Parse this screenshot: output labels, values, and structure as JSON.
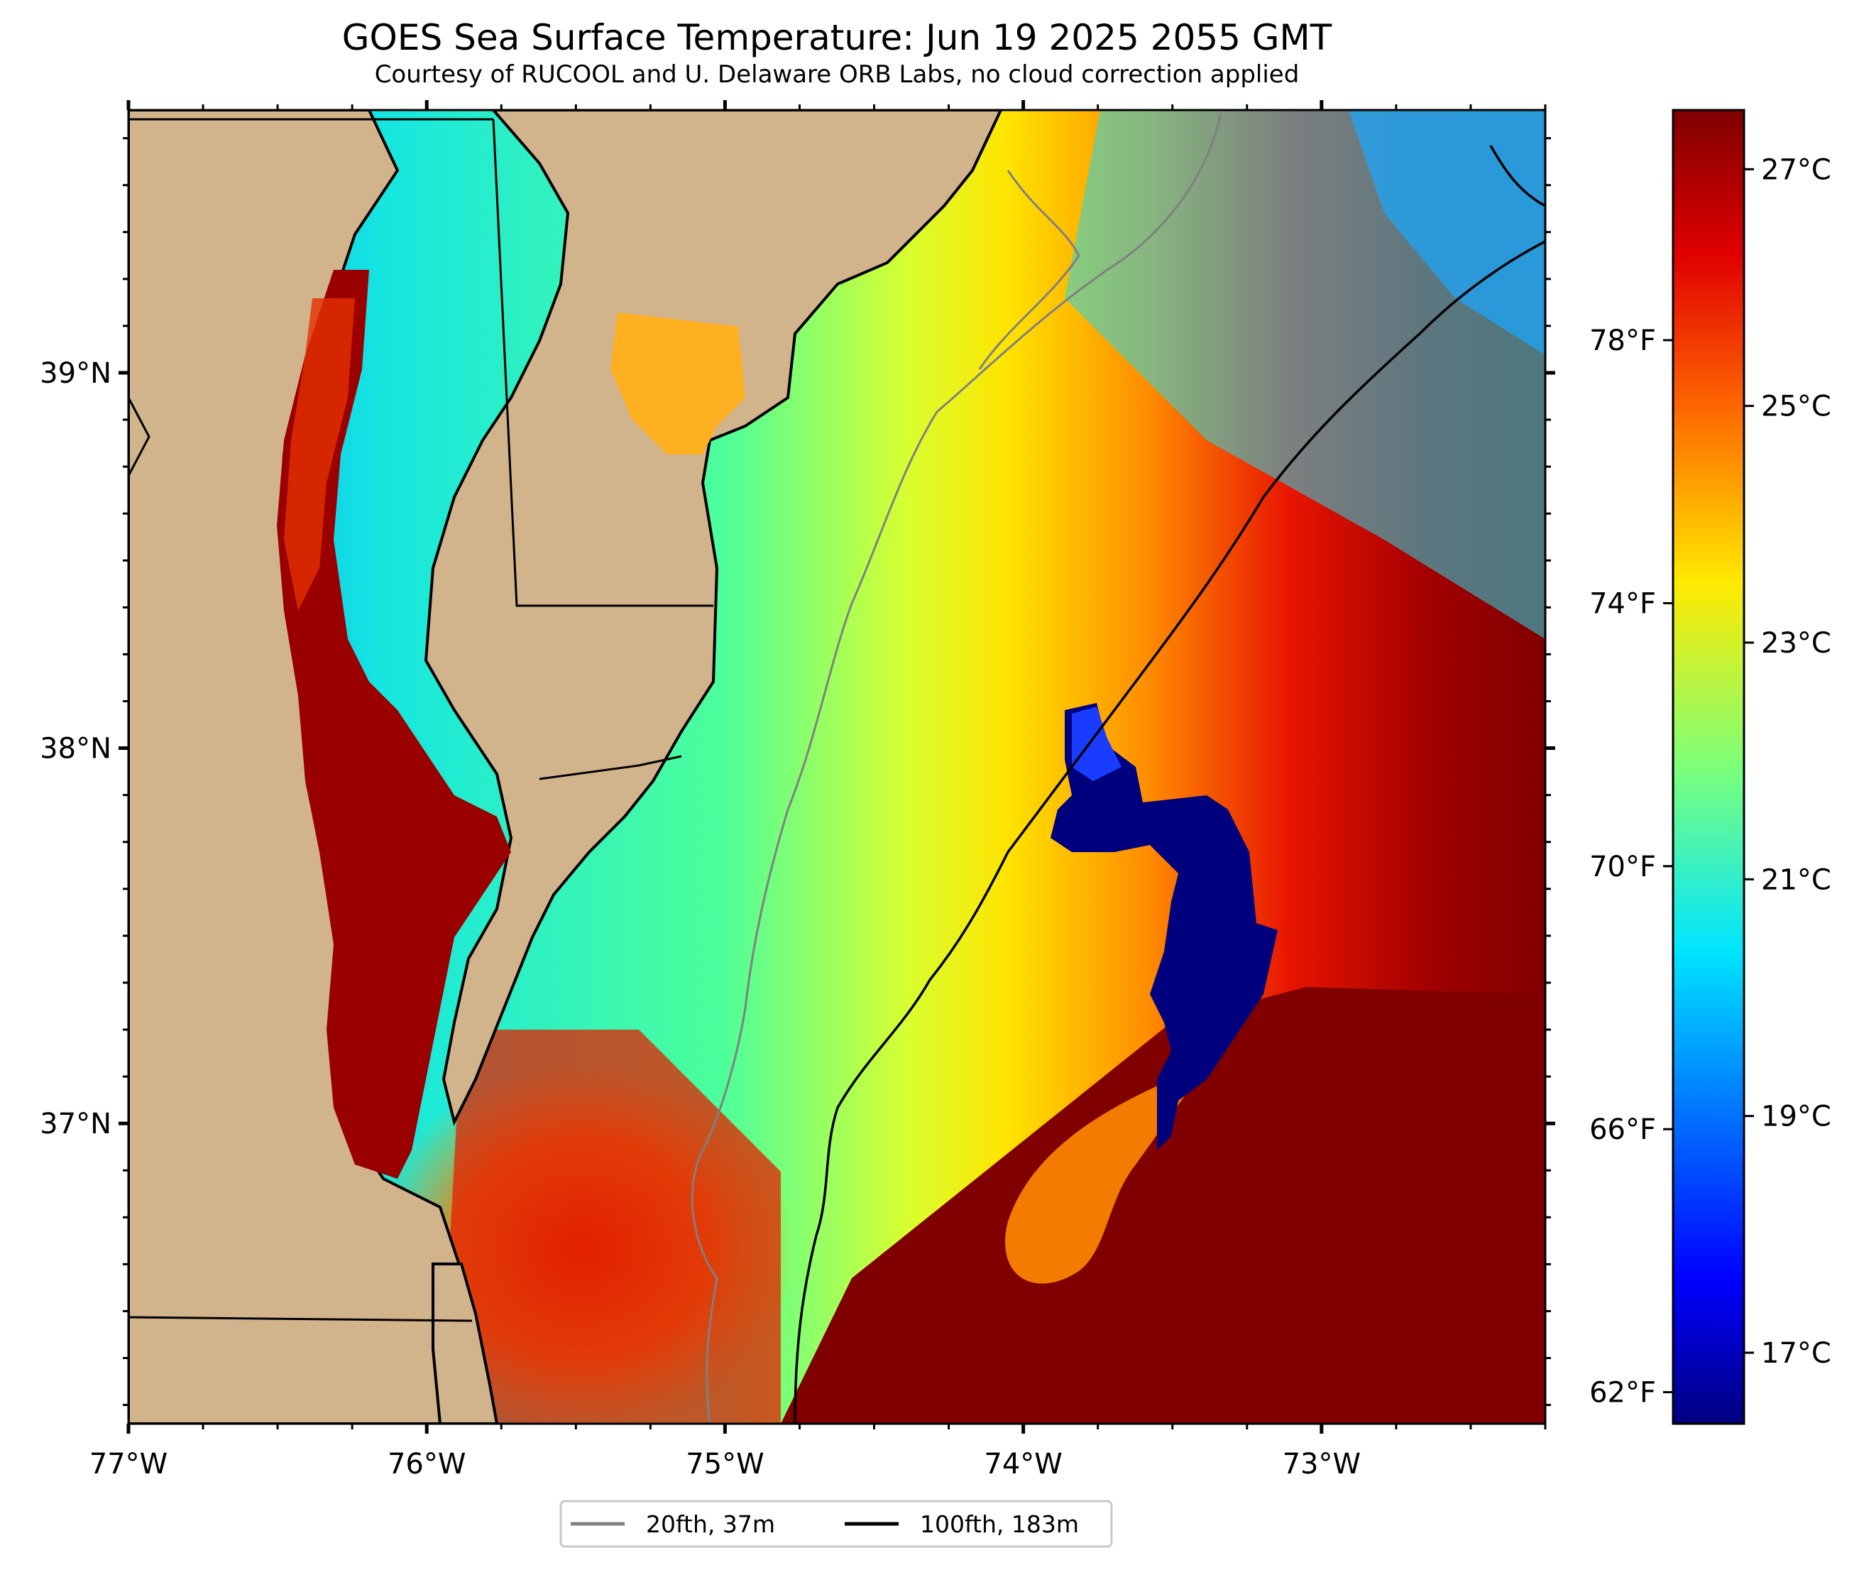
{
  "title": "GOES Sea Surface Temperature: Jun 19 2025 2055 GMT",
  "subtitle": "Courtesy of RUCOOL and U. Delaware ORB Labs, no cloud correction applied",
  "map": {
    "lon_range": [
      -77.0,
      -72.25
    ],
    "lat_range": [
      36.2,
      39.7
    ],
    "lon_ticks": [
      {
        "value": -77,
        "label": "77°W"
      },
      {
        "value": -76,
        "label": "76°W"
      },
      {
        "value": -75,
        "label": "75°W"
      },
      {
        "value": -74,
        "label": "74°W"
      },
      {
        "value": -73,
        "label": "73°W"
      }
    ],
    "lat_ticks": [
      {
        "value": 39,
        "label": "39°N"
      },
      {
        "value": 38,
        "label": "38°N"
      },
      {
        "value": 37,
        "label": "37°N"
      }
    ],
    "land_color": "#d2b48c",
    "colormap": "jet"
  },
  "colorbar": {
    "celsius_range": [
      16.4,
      27.5
    ],
    "celsius_ticks": [
      {
        "value": 27,
        "label": "27°C"
      },
      {
        "value": 25,
        "label": "25°C"
      },
      {
        "value": 23,
        "label": "23°C"
      },
      {
        "value": 21,
        "label": "21°C"
      },
      {
        "value": 19,
        "label": "19°C"
      },
      {
        "value": 17,
        "label": "17°C"
      }
    ],
    "fahrenheit_ticks": [
      {
        "value": 78,
        "label": "78°F"
      },
      {
        "value": 74,
        "label": "74°F"
      },
      {
        "value": 70,
        "label": "70°F"
      },
      {
        "value": 66,
        "label": "66°F"
      },
      {
        "value": 62,
        "label": "62°F"
      }
    ]
  },
  "legend": {
    "placement": "bottom-center",
    "items": [
      {
        "label": "20fth, 37m",
        "color": "#808080"
      },
      {
        "label": "100fth, 183m",
        "color": "#000000"
      }
    ]
  }
}
